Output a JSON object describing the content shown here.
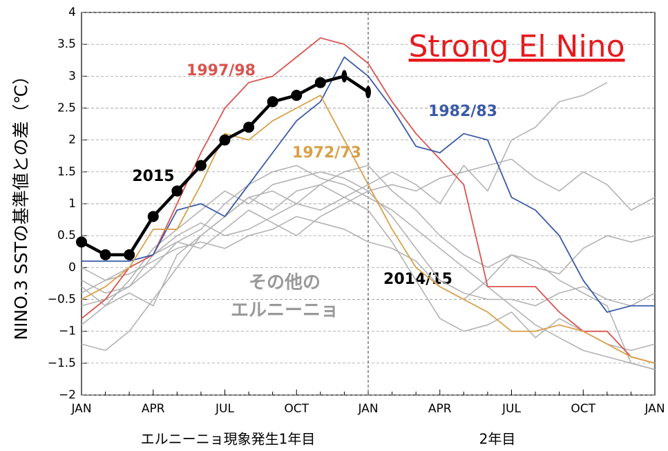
{
  "chart_data": {
    "type": "line",
    "title": "Strong El Nino",
    "y_label": "NINO.3 SSTの基準値との差（℃）",
    "x_labels": [
      "エルニーニョ現象発生1年目",
      "2年目"
    ],
    "annotations": [
      "2014/15",
      "その他の",
      "エルニーニョ"
    ],
    "categories": [
      "JAN",
      null,
      null,
      "APR",
      null,
      null,
      "JUL",
      null,
      null,
      "OCT",
      null,
      null,
      "JAN",
      null,
      null,
      "APR",
      null,
      null,
      "JUL",
      null,
      null,
      "OCT",
      null,
      null,
      "JAN"
    ],
    "ylim": [
      -2,
      4
    ],
    "yticks": [
      {
        "value": -2,
        "label": "−2"
      },
      {
        "value": -1.5,
        "label": "−1.5"
      },
      {
        "value": -1,
        "label": "−1"
      },
      {
        "value": -0.5,
        "label": "−0.5"
      },
      0,
      0.5,
      1,
      1.5,
      2,
      2.5,
      3,
      3.5,
      4
    ],
    "grid": true,
    "gray_series": [
      {
        "color": "#b3b3b3",
        "values": [
          -0.3,
          -0.6,
          -0.2,
          0.3,
          0.6,
          0.9,
          1.2,
          1.0,
          1.3,
          1.4,
          1.5,
          1.4,
          1.2,
          0.8,
          0.3,
          -0.2,
          -0.4,
          -0.5,
          -0.5,
          -0.6,
          -0.4,
          -0.3,
          -0.5,
          -0.6,
          -0.4
        ]
      },
      {
        "color": "#b3b3b3",
        "values": [
          -1.2,
          -1.3,
          -1.0,
          -0.5,
          0.0,
          0.5,
          0.8,
          1.1,
          0.9,
          1.2,
          1.3,
          1.1,
          0.9,
          0.4,
          -0.2,
          -0.8,
          -1.0,
          -0.9,
          -0.7,
          -1.1,
          -0.8,
          -1.0,
          -1.2,
          -1.3,
          -1.2
        ]
      },
      {
        "color": "#b3b3b3",
        "values": [
          -0.4,
          -0.2,
          0.0,
          0.2,
          0.5,
          0.7,
          0.5,
          0.6,
          0.8,
          1.0,
          0.9,
          1.1,
          1.3,
          1.5,
          1.3,
          1.0,
          1.6,
          1.2,
          2.0,
          2.2,
          2.6,
          2.7,
          2.9,
          null,
          null
        ]
      },
      {
        "color": "#b3b3b3",
        "values": [
          -0.6,
          -0.5,
          -0.3,
          0.2,
          0.4,
          0.3,
          0.6,
          0.9,
          0.7,
          0.5,
          0.8,
          1.0,
          1.2,
          1.3,
          1.2,
          1.4,
          1.5,
          1.6,
          1.7,
          1.4,
          1.2,
          1.5,
          1.3,
          0.9,
          1.1
        ]
      },
      {
        "color": "#b3b3b3",
        "values": [
          0.0,
          -0.2,
          -0.1,
          0.1,
          0.3,
          0.4,
          0.3,
          0.5,
          0.6,
          0.8,
          0.7,
          0.6,
          0.4,
          0.3,
          0.1,
          -0.3,
          -0.5,
          -0.2,
          0.2,
          0.0,
          -0.1,
          0.3,
          0.5,
          0.4,
          0.5
        ]
      },
      {
        "color": "#b3b3b3",
        "values": [
          -0.9,
          -0.6,
          -0.4,
          -0.6,
          0.2,
          0.5,
          0.8,
          1.1,
          1.2,
          1.0,
          1.3,
          1.5,
          1.6,
          1.2,
          0.9,
          0.5,
          0.2,
          0.0,
          0.2,
          0.1,
          -0.2,
          -0.4,
          -0.6,
          -1.5,
          -1.6
        ]
      },
      {
        "color": "#b3b3b3",
        "values": [
          -0.2,
          -0.4,
          -0.3,
          0.0,
          0.4,
          0.6,
          1.0,
          1.3,
          1.5,
          1.6,
          1.4,
          1.3,
          1.1,
          0.9,
          0.6,
          0.3,
          0.0,
          -0.3,
          -0.6,
          -0.9,
          -1.1,
          -1.3,
          -1.4,
          -1.5,
          -1.6
        ]
      }
    ],
    "series": [
      {
        "name": "1997/98",
        "color": "#d9534f",
        "values": [
          -0.8,
          -0.5,
          0.0,
          0.2,
          1.0,
          1.8,
          2.5,
          2.9,
          3.0,
          3.3,
          3.6,
          3.5,
          3.2,
          2.6,
          2.1,
          1.7,
          1.3,
          -0.3,
          -0.3,
          -0.3,
          -0.7,
          -1.0,
          -1.0,
          -1.4,
          -1.5
        ]
      },
      {
        "name": "1982/83",
        "color": "#3a5aa8",
        "values": [
          0.1,
          0.1,
          0.1,
          0.2,
          0.9,
          1.0,
          0.8,
          1.3,
          1.8,
          2.3,
          2.6,
          3.3,
          3.0,
          2.5,
          1.9,
          1.8,
          2.1,
          2.0,
          1.1,
          0.9,
          0.5,
          -0.2,
          -0.7,
          -0.6,
          -0.6
        ]
      },
      {
        "name": "1972/73",
        "color": "#d9a049",
        "values": [
          -0.5,
          -0.3,
          0.0,
          0.6,
          0.6,
          1.3,
          2.1,
          2.0,
          2.3,
          2.5,
          2.7,
          2.0,
          1.3,
          0.6,
          0.0,
          -0.3,
          -0.5,
          -0.7,
          -1.0,
          -1.0,
          -0.9,
          -1.0,
          -1.2,
          -1.4,
          -1.5
        ]
      },
      {
        "name": "2015",
        "color": "#000000",
        "markers": true,
        "values": [
          0.4,
          0.2,
          0.2,
          0.8,
          1.2,
          1.6,
          2.0,
          2.2,
          2.6,
          2.7,
          2.9,
          3.0,
          2.75,
          null,
          null,
          null,
          null,
          null,
          null,
          null,
          null,
          null,
          null,
          null,
          null
        ]
      }
    ]
  }
}
